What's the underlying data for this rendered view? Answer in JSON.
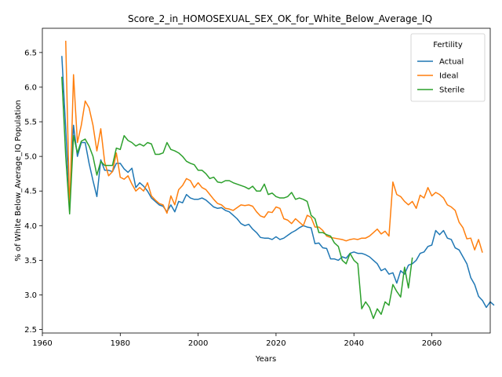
{
  "chart_data": {
    "type": "line",
    "title": "Score_2_in_HOMOSEXUAL_SEX_OK_for_White_Below_Average_IQ",
    "xlabel": "Years",
    "ylabel": "% of White Below_Average_IQ Population",
    "xlim": [
      1960,
      2075
    ],
    "ylim": [
      2.45,
      6.85
    ],
    "xticks": [
      1960,
      1980,
      2000,
      2020,
      2040,
      2060
    ],
    "yticks": [
      2.5,
      3.0,
      3.5,
      4.0,
      4.5,
      5.0,
      5.5,
      6.0,
      6.5
    ],
    "xtick_labels": [
      "1960",
      "1980",
      "2000",
      "2020",
      "2040",
      "2060"
    ],
    "ytick_labels": [
      "2.5",
      "3.0",
      "3.5",
      "4.0",
      "4.5",
      "5.0",
      "5.5",
      "6.0",
      "6.5"
    ],
    "grid": false,
    "legend": {
      "title": "Fertility",
      "position": "top-right"
    },
    "x_start": 1965,
    "series": [
      {
        "name": "Actual",
        "color": "#1f77b4",
        "values": [
          6.45,
          5.4,
          4.3,
          5.45,
          5.0,
          5.2,
          5.2,
          4.9,
          4.65,
          4.42,
          4.95,
          4.8,
          4.8,
          4.78,
          4.9,
          4.9,
          4.82,
          4.77,
          4.83,
          4.55,
          4.62,
          4.57,
          4.5,
          4.4,
          4.35,
          4.3,
          4.28,
          4.2,
          4.3,
          4.2,
          4.35,
          4.33,
          4.45,
          4.4,
          4.38,
          4.38,
          4.4,
          4.37,
          4.32,
          4.27,
          4.25,
          4.26,
          4.22,
          4.2,
          4.15,
          4.1,
          4.03,
          4.0,
          4.02,
          3.95,
          3.9,
          3.83,
          3.82,
          3.82,
          3.8,
          3.84,
          3.8,
          3.82,
          3.86,
          3.9,
          3.93,
          3.97,
          4.0,
          3.98,
          3.97,
          3.74,
          3.75,
          3.68,
          3.67,
          3.52,
          3.52,
          3.5,
          3.55,
          3.53,
          3.6,
          3.62,
          3.6,
          3.6,
          3.58,
          3.55,
          3.5,
          3.45,
          3.35,
          3.38,
          3.3,
          3.32,
          3.17,
          3.35,
          3.3,
          3.43,
          3.45,
          3.5,
          3.6,
          3.62,
          3.7,
          3.72,
          3.93,
          3.87,
          3.93,
          3.82,
          3.8,
          3.68,
          3.65,
          3.55,
          3.45,
          3.25,
          3.15,
          2.98,
          2.92,
          2.82,
          2.9,
          2.85
        ]
      },
      {
        "name": "Ideal",
        "color": "#ff7f0e",
        "values": [
          null,
          6.67,
          4.2,
          6.18,
          5.2,
          5.45,
          5.8,
          5.7,
          5.45,
          5.08,
          5.4,
          4.92,
          4.72,
          4.78,
          5.05,
          4.7,
          4.67,
          4.72,
          4.6,
          4.5,
          4.55,
          4.5,
          4.62,
          4.43,
          4.37,
          4.32,
          4.3,
          4.18,
          4.43,
          4.3,
          4.52,
          4.58,
          4.68,
          4.65,
          4.55,
          4.62,
          4.55,
          4.52,
          4.45,
          4.38,
          4.32,
          4.3,
          4.25,
          4.24,
          4.22,
          4.26,
          4.3,
          4.29,
          4.3,
          4.28,
          4.2,
          4.14,
          4.12,
          4.2,
          4.19,
          4.27,
          4.25,
          4.1,
          4.08,
          4.03,
          4.1,
          4.05,
          4.0,
          4.15,
          4.12,
          3.98,
          3.98,
          3.93,
          3.85,
          3.83,
          3.82,
          3.81,
          3.8,
          3.78,
          3.8,
          3.81,
          3.8,
          3.82,
          3.82,
          3.85,
          3.9,
          3.95,
          3.88,
          3.92,
          3.85,
          4.63,
          4.45,
          4.42,
          4.35,
          4.3,
          4.35,
          4.25,
          4.44,
          4.4,
          4.55,
          4.43,
          4.48,
          4.45,
          4.4,
          4.3,
          4.27,
          4.22,
          4.05,
          3.97,
          3.81,
          3.82,
          3.65,
          3.8,
          3.61
        ]
      },
      {
        "name": "Sterile",
        "color": "#2ca02c",
        "values": [
          6.15,
          5.0,
          4.17,
          5.3,
          5.05,
          5.22,
          5.25,
          5.15,
          5.0,
          4.73,
          4.93,
          4.87,
          4.87,
          4.87,
          5.12,
          5.1,
          5.3,
          5.23,
          5.2,
          5.15,
          5.18,
          5.15,
          5.2,
          5.18,
          5.03,
          5.03,
          5.05,
          5.2,
          5.1,
          5.08,
          5.05,
          5.0,
          4.93,
          4.9,
          4.88,
          4.8,
          4.8,
          4.75,
          4.68,
          4.7,
          4.63,
          4.62,
          4.65,
          4.65,
          4.62,
          4.6,
          4.58,
          4.56,
          4.53,
          4.57,
          4.5,
          4.5,
          4.6,
          4.45,
          4.47,
          4.42,
          4.4,
          4.4,
          4.42,
          4.48,
          4.38,
          4.4,
          4.38,
          4.35,
          4.15,
          4.1,
          3.9,
          3.9,
          3.87,
          3.85,
          3.75,
          3.7,
          3.5,
          3.45,
          3.6,
          3.5,
          3.45,
          2.8,
          2.9,
          2.82,
          2.66,
          2.8,
          2.72,
          2.9,
          2.85,
          3.15,
          3.05,
          2.97,
          3.4,
          3.1,
          3.54
        ]
      }
    ]
  }
}
